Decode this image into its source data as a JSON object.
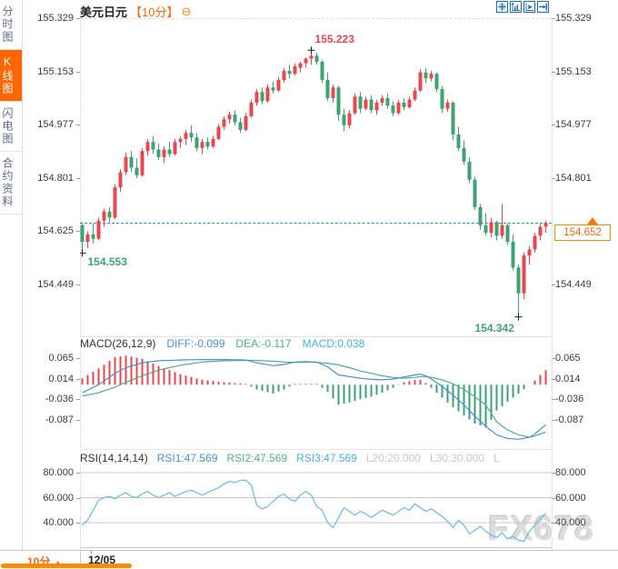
{
  "window": {
    "title_symbol": "美元日元",
    "title_period": "【10分】",
    "collapse_icon": "⊖"
  },
  "sidebar": {
    "tabs": [
      {
        "label": "分时图",
        "active": false
      },
      {
        "label": "K线图",
        "active": true
      },
      {
        "label": "闪电图",
        "active": false
      },
      {
        "label": "合约资料",
        "active": false
      }
    ]
  },
  "toolbar": {
    "buttons": [
      "crosshair",
      "zoom-in",
      "zoom-out",
      "pan-right"
    ]
  },
  "price_axis": {
    "left_levels": [
      "155.329",
      "155.153",
      "154.977",
      "154.801",
      "154.625",
      "154.449"
    ],
    "right_levels": [
      "155.329",
      "155.153",
      "154.977",
      "154.801",
      "154.449"
    ]
  },
  "current_price": {
    "value": "154.652"
  },
  "annotations": {
    "high": "155.223",
    "low_start": "154.553",
    "low": "154.342"
  },
  "macd_panel": {
    "title": "MACD(26,12,9)",
    "diff_label": "DIFF:-0.099",
    "dea_label": "DEA:-0.117",
    "macd_label": "MACD:0.038",
    "axis_levels": [
      "0.065",
      "0.014",
      "-0.036",
      "-0.087"
    ]
  },
  "rsi_panel": {
    "title": "RSI(14,14,14)",
    "rsi1_label": "RSI1:47.569",
    "rsi2_label": "RSI2:47.569",
    "rsi3_label": "RSI3:47.569",
    "l20_label": "L20:20.000",
    "l30_label": "L30:30.000",
    "l_truncated": "L",
    "axis_levels": [
      "80.000",
      "60.000",
      "40.000"
    ]
  },
  "bottom_bar": {
    "period": "10分",
    "period_arrow": "▲",
    "date": "12/05"
  },
  "watermark": "FX678",
  "colors": {
    "up": "#e8474e",
    "down": "#3ea273",
    "accent_orange": "#ff6600",
    "dash_blue": "#2b8fe8",
    "diff_blue": "#4a90d9",
    "dea_green": "#4fae8d",
    "rsi_line": "#5cb6e8",
    "grid_gray": "#c9c9c9",
    "marker_black": "#222222",
    "toolbar_blue": "#1a6fc4"
  },
  "chart_data": {
    "type": "candlestick+macd+rsi",
    "symbol": "美元日元 (USD/JPY)",
    "interval": "10分",
    "date": "12/05",
    "price_axis_values": [
      155.329,
      155.153,
      154.977,
      154.801,
      154.625,
      154.449
    ],
    "last_price": 154.652,
    "markers": {
      "high": {
        "index": 42,
        "price": 155.223
      },
      "low_start": {
        "index": 0,
        "price": 154.553
      },
      "low": {
        "index": 80,
        "price": 154.342
      }
    },
    "candles": [
      [
        154.645,
        154.655,
        154.553,
        154.59
      ],
      [
        154.59,
        154.625,
        154.57,
        154.615
      ],
      [
        154.615,
        154.65,
        154.585,
        154.6
      ],
      [
        154.6,
        154.67,
        154.595,
        154.66
      ],
      [
        154.66,
        154.7,
        154.64,
        154.69
      ],
      [
        154.69,
        154.705,
        154.655,
        154.67
      ],
      [
        154.67,
        154.78,
        154.665,
        154.77
      ],
      [
        154.77,
        154.83,
        154.755,
        154.82
      ],
      [
        154.82,
        154.885,
        154.81,
        154.87
      ],
      [
        154.87,
        154.89,
        154.82,
        154.835
      ],
      [
        154.835,
        154.865,
        154.8,
        154.81
      ],
      [
        154.81,
        154.9,
        154.805,
        154.89
      ],
      [
        154.89,
        154.93,
        154.875,
        154.92
      ],
      [
        154.92,
        154.94,
        154.88,
        154.895
      ],
      [
        154.895,
        154.915,
        154.86,
        154.87
      ],
      [
        154.87,
        154.905,
        154.85,
        154.895
      ],
      [
        154.895,
        154.92,
        154.87,
        154.88
      ],
      [
        154.88,
        154.93,
        154.875,
        154.92
      ],
      [
        154.92,
        154.94,
        154.9,
        154.93
      ],
      [
        154.93,
        154.96,
        154.91,
        154.95
      ],
      [
        154.95,
        154.975,
        154.92,
        154.935
      ],
      [
        154.935,
        154.95,
        154.89,
        154.9
      ],
      [
        154.9,
        154.93,
        154.88,
        154.92
      ],
      [
        154.92,
        154.935,
        154.895,
        154.905
      ],
      [
        154.905,
        154.94,
        154.9,
        154.93
      ],
      [
        154.93,
        154.98,
        154.925,
        154.97
      ],
      [
        154.97,
        155.005,
        154.96,
        154.995
      ],
      [
        154.995,
        155.02,
        154.98,
        155.01
      ],
      [
        155.01,
        155.025,
        154.975,
        154.985
      ],
      [
        154.985,
        155.0,
        154.95,
        154.96
      ],
      [
        154.96,
        155.015,
        154.955,
        155.005
      ],
      [
        155.005,
        155.06,
        155.0,
        155.05
      ],
      [
        155.05,
        155.095,
        155.04,
        155.085
      ],
      [
        155.085,
        155.1,
        155.045,
        155.055
      ],
      [
        155.055,
        155.11,
        155.05,
        155.1
      ],
      [
        155.1,
        155.12,
        155.08,
        155.09
      ],
      [
        155.09,
        155.135,
        155.085,
        155.125
      ],
      [
        155.125,
        155.165,
        155.115,
        155.155
      ],
      [
        155.155,
        155.175,
        155.13,
        155.145
      ],
      [
        155.145,
        155.18,
        155.14,
        155.17
      ],
      [
        155.165,
        155.185,
        155.15,
        155.18
      ],
      [
        155.18,
        155.2,
        155.165,
        155.195
      ],
      [
        155.195,
        155.223,
        155.175,
        155.205
      ],
      [
        155.205,
        155.215,
        155.175,
        155.185
      ],
      [
        155.185,
        155.19,
        155.115,
        155.125
      ],
      [
        155.125,
        155.15,
        155.055,
        155.065
      ],
      [
        155.065,
        155.11,
        155.05,
        155.1
      ],
      [
        155.1,
        155.105,
        154.99,
        155.01
      ],
      [
        155.01,
        155.03,
        154.955,
        154.975
      ],
      [
        154.975,
        155.025,
        154.965,
        155.015
      ],
      [
        155.015,
        155.08,
        155.01,
        155.07
      ],
      [
        155.07,
        155.085,
        155.015,
        155.03
      ],
      [
        155.03,
        155.07,
        155.025,
        155.06
      ],
      [
        155.06,
        155.075,
        155.015,
        155.025
      ],
      [
        155.025,
        155.06,
        155.01,
        155.05
      ],
      [
        155.05,
        155.075,
        155.04,
        155.065
      ],
      [
        155.065,
        155.08,
        155.03,
        155.04
      ],
      [
        155.04,
        155.055,
        155.005,
        155.015
      ],
      [
        155.015,
        155.06,
        155.01,
        155.05
      ],
      [
        155.05,
        155.065,
        155.025,
        155.035
      ],
      [
        155.035,
        155.07,
        155.03,
        155.06
      ],
      [
        155.06,
        155.1,
        155.055,
        155.09
      ],
      [
        155.09,
        155.16,
        155.085,
        155.15
      ],
      [
        155.15,
        155.165,
        155.115,
        155.13
      ],
      [
        155.13,
        155.155,
        155.12,
        155.145
      ],
      [
        155.145,
        155.15,
        155.085,
        155.095
      ],
      [
        155.095,
        155.105,
        155.015,
        155.03
      ],
      [
        155.03,
        155.06,
        155.02,
        155.05
      ],
      [
        155.05,
        155.055,
        154.925,
        154.945
      ],
      [
        154.945,
        154.97,
        154.89,
        154.9
      ],
      [
        154.9,
        154.925,
        154.845,
        154.855
      ],
      [
        154.855,
        154.87,
        154.785,
        154.795
      ],
      [
        154.795,
        154.805,
        154.695,
        154.705
      ],
      [
        154.705,
        154.715,
        154.63,
        154.645
      ],
      [
        154.645,
        154.685,
        154.61,
        154.62
      ],
      [
        154.62,
        154.67,
        154.605,
        154.655
      ],
      [
        154.655,
        154.66,
        154.595,
        154.61
      ],
      [
        154.61,
        154.715,
        154.6,
        154.645
      ],
      [
        154.645,
        154.65,
        154.58,
        154.59
      ],
      [
        154.59,
        154.615,
        154.495,
        154.505
      ],
      [
        154.505,
        154.515,
        154.342,
        154.42
      ],
      [
        154.42,
        154.555,
        154.4,
        154.545
      ],
      [
        154.545,
        154.575,
        154.515,
        154.565
      ],
      [
        154.565,
        154.62,
        154.555,
        154.61
      ],
      [
        154.61,
        154.65,
        154.595,
        154.64
      ],
      [
        154.64,
        154.66,
        154.62,
        154.652
      ]
    ],
    "macd": {
      "axis_values": [
        0.065,
        0.014,
        -0.036,
        -0.087
      ],
      "diff_last": -0.099,
      "dea_last": -0.117,
      "macd_last": 0.038,
      "histogram_formula": "2*(diff-dea)",
      "diff_keypoints": [
        [
          0,
          -0.02
        ],
        [
          3,
          0.0
        ],
        [
          6,
          0.028
        ],
        [
          8,
          0.042
        ],
        [
          11,
          0.054
        ],
        [
          14,
          0.059
        ],
        [
          18,
          0.061
        ],
        [
          22,
          0.062
        ],
        [
          26,
          0.062
        ],
        [
          30,
          0.061
        ],
        [
          32,
          0.054
        ],
        [
          35,
          0.047
        ],
        [
          37,
          0.05
        ],
        [
          39,
          0.056
        ],
        [
          41,
          0.057
        ],
        [
          43,
          0.056
        ],
        [
          45,
          0.044
        ],
        [
          47,
          0.024
        ],
        [
          49,
          0.02
        ],
        [
          51,
          0.016
        ],
        [
          53,
          0.013
        ],
        [
          55,
          0.012
        ],
        [
          57,
          0.014
        ],
        [
          59,
          0.019
        ],
        [
          61,
          0.024
        ],
        [
          62,
          0.026
        ],
        [
          63,
          0.022
        ],
        [
          64,
          0.014
        ],
        [
          66,
          -0.004
        ],
        [
          68,
          -0.026
        ],
        [
          70,
          -0.05
        ],
        [
          72,
          -0.078
        ],
        [
          74,
          -0.103
        ],
        [
          76,
          -0.124
        ],
        [
          78,
          -0.133
        ],
        [
          80,
          -0.135
        ],
        [
          82,
          -0.13
        ],
        [
          83,
          -0.122
        ],
        [
          84,
          -0.11
        ],
        [
          85,
          -0.099
        ]
      ],
      "dea_keypoints": [
        [
          0,
          -0.028
        ],
        [
          3,
          -0.02
        ],
        [
          6,
          -0.006
        ],
        [
          8,
          0.006
        ],
        [
          11,
          0.022
        ],
        [
          14,
          0.036
        ],
        [
          18,
          0.048
        ],
        [
          22,
          0.056
        ],
        [
          26,
          0.059
        ],
        [
          30,
          0.06
        ],
        [
          32,
          0.06
        ],
        [
          35,
          0.058
        ],
        [
          37,
          0.056
        ],
        [
          39,
          0.055
        ],
        [
          41,
          0.056
        ],
        [
          43,
          0.055
        ],
        [
          45,
          0.053
        ],
        [
          47,
          0.049
        ],
        [
          49,
          0.042
        ],
        [
          51,
          0.034
        ],
        [
          53,
          0.028
        ],
        [
          55,
          0.022
        ],
        [
          57,
          0.018
        ],
        [
          59,
          0.016
        ],
        [
          61,
          0.018
        ],
        [
          62,
          0.02
        ],
        [
          63,
          0.02
        ],
        [
          64,
          0.018
        ],
        [
          66,
          0.012
        ],
        [
          68,
          0.002
        ],
        [
          70,
          -0.012
        ],
        [
          72,
          -0.03
        ],
        [
          74,
          -0.05
        ],
        [
          75,
          -0.07
        ],
        [
          76,
          -0.092
        ],
        [
          78,
          -0.112
        ],
        [
          80,
          -0.124
        ],
        [
          82,
          -0.13
        ],
        [
          83,
          -0.127
        ],
        [
          84,
          -0.122
        ],
        [
          85,
          -0.117
        ]
      ]
    },
    "rsi": {
      "axis_values": [
        80,
        60,
        40,
        20
      ],
      "rsi1_last": 47.569,
      "values": [
        38,
        42,
        50,
        58,
        60,
        61,
        59,
        62,
        64,
        61,
        60,
        63,
        65,
        62,
        60,
        62,
        64,
        61,
        63,
        65,
        66,
        64,
        62,
        64,
        66,
        68,
        71,
        73,
        72,
        74,
        74,
        70,
        54,
        51,
        53,
        57,
        61,
        63,
        59,
        57,
        62,
        65,
        62,
        53,
        50,
        40,
        36,
        44,
        52,
        49,
        46,
        49,
        47,
        44,
        47,
        50,
        48,
        46,
        49,
        52,
        50,
        55,
        52,
        49,
        51,
        48,
        45,
        41,
        36,
        42,
        38,
        31,
        34,
        37,
        33,
        30,
        28,
        32,
        27,
        29,
        26,
        25,
        33,
        38,
        43,
        47.569
      ]
    }
  }
}
